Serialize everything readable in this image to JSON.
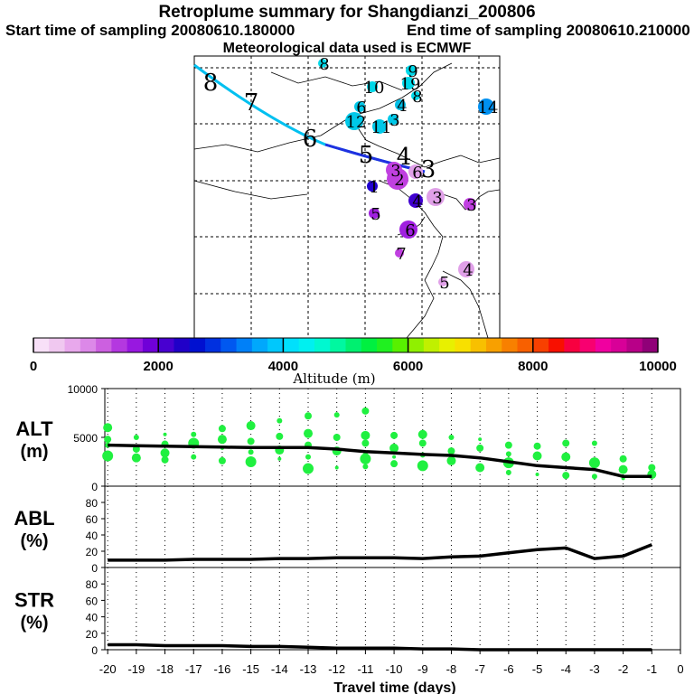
{
  "header": {
    "title": "Retroplume summary for Shangdianzi_200806",
    "start": "Start time of sampling 20080610.180000",
    "end": "End time of sampling 20080610.210000",
    "met": "Meteorological data used is ECMWF"
  },
  "colorbar": {
    "label": "Altitude (m)",
    "ticks": [
      "0",
      "2000",
      "4000",
      "6000",
      "8000",
      "10000"
    ],
    "colors": [
      "#f8e0f8",
      "#f0c8f0",
      "#e8a8ec",
      "#dc88e8",
      "#cc60e0",
      "#b438e0",
      "#9818e0",
      "#7000d8",
      "#4800d0",
      "#2000c8",
      "#0010d0",
      "#0030e0",
      "#0058f0",
      "#0080f8",
      "#00a8fc",
      "#00c8fc",
      "#00e0fc",
      "#00f0f0",
      "#00f8d0",
      "#00f8a0",
      "#00f070",
      "#00f040",
      "#20f020",
      "#58f000",
      "#90f000",
      "#c0f000",
      "#e8f000",
      "#f8e000",
      "#f8c000",
      "#f8a000",
      "#f88000",
      "#f86000",
      "#f84000",
      "#f81000",
      "#f80040",
      "#f80070",
      "#f000a0",
      "#d80098",
      "#b80088",
      "#900078"
    ]
  },
  "map": {
    "path_labels": [
      "8",
      "7",
      "6",
      "5",
      "4",
      "3"
    ],
    "clusters": [
      {
        "label": "8",
        "color": "#00d8e8"
      },
      {
        "label": "9",
        "color": "#00d8e8"
      },
      {
        "label": "10",
        "color": "#00d8e8"
      },
      {
        "label": "19",
        "color": "#00d8e8"
      },
      {
        "label": "8",
        "color": "#00d8e8"
      },
      {
        "label": "4",
        "color": "#00c0e8"
      },
      {
        "label": "14",
        "color": "#0090f0"
      },
      {
        "label": "6",
        "color": "#00c8e8"
      },
      {
        "label": "12",
        "color": "#00c8e8"
      },
      {
        "label": "11",
        "color": "#00c8e8"
      },
      {
        "label": "3",
        "color": "#00c8e8"
      },
      {
        "label": "2",
        "color": "#c040e0"
      },
      {
        "label": "1",
        "color": "#2000d0"
      },
      {
        "label": "4",
        "color": "#4000d0"
      },
      {
        "label": "3",
        "color": "#e0a0e8"
      },
      {
        "label": "3",
        "color": "#c040e0"
      },
      {
        "label": "5",
        "color": "#a020e0"
      },
      {
        "label": "6",
        "color": "#a020e0"
      },
      {
        "label": "7",
        "color": "#c040e0"
      },
      {
        "label": "4",
        "color": "#e0a0e8"
      },
      {
        "label": "5",
        "color": "#e0a0e8"
      },
      {
        "label": "6",
        "color": "#e0a0e8"
      },
      {
        "label": "3",
        "color": "#c040e0"
      }
    ]
  },
  "chart_data": {
    "type": "line",
    "x_label": "Travel time (days)",
    "x_ticks": [
      "-20",
      "-19",
      "-18",
      "-17",
      "-16",
      "-15",
      "-14",
      "-13",
      "-12",
      "-11",
      "-10",
      "-9",
      "-8",
      "-7",
      "-6",
      "-5",
      "-4",
      "-3",
      "-2",
      "-1",
      "0"
    ],
    "xlim": [
      -20.1,
      0
    ],
    "panels": [
      {
        "name": "alt",
        "label_top": "ALT",
        "label_bottom": "(m)",
        "ylim": [
          0,
          10000
        ],
        "yticks": [
          "10000",
          "5000",
          "0"
        ],
        "line_x": [
          -20,
          -19,
          -18,
          -17,
          -16,
          -15,
          -14,
          -13,
          -12,
          -11,
          -10,
          -9,
          -8,
          -7,
          -6,
          -5,
          -4,
          -3,
          -2,
          -1
        ],
        "line_y": [
          4200,
          4150,
          4100,
          4050,
          4000,
          3950,
          3950,
          3950,
          3800,
          3550,
          3400,
          3250,
          3150,
          2900,
          2500,
          2100,
          1900,
          1700,
          1000,
          1000
        ],
        "points": [
          [
            -20,
            6000
          ],
          [
            -20,
            4800
          ],
          [
            -20,
            4200
          ],
          [
            -20,
            3100
          ],
          [
            -19,
            5000
          ],
          [
            -19,
            3800
          ],
          [
            -19,
            2900
          ],
          [
            -18,
            5300
          ],
          [
            -18,
            4300
          ],
          [
            -18,
            3400
          ],
          [
            -18,
            2700
          ],
          [
            -17,
            5300
          ],
          [
            -17,
            4400
          ],
          [
            -17,
            3000
          ],
          [
            -16,
            5900
          ],
          [
            -16,
            4800
          ],
          [
            -16,
            3900
          ],
          [
            -16,
            2600
          ],
          [
            -15,
            6200
          ],
          [
            -15,
            4600
          ],
          [
            -15,
            3500
          ],
          [
            -15,
            2500
          ],
          [
            -14,
            6700
          ],
          [
            -14,
            5100
          ],
          [
            -14,
            3700
          ],
          [
            -14,
            2800
          ],
          [
            -13,
            7200
          ],
          [
            -13,
            5400
          ],
          [
            -13,
            4200
          ],
          [
            -13,
            3000
          ],
          [
            -13,
            1800
          ],
          [
            -12,
            7300
          ],
          [
            -12,
            5000
          ],
          [
            -12,
            3600
          ],
          [
            -12,
            1900
          ],
          [
            -11,
            7700
          ],
          [
            -11,
            5200
          ],
          [
            -11,
            4400
          ],
          [
            -11,
            3200
          ],
          [
            -11,
            2800
          ],
          [
            -11,
            2000
          ],
          [
            -10,
            5200
          ],
          [
            -10,
            3900
          ],
          [
            -10,
            3000
          ],
          [
            -10,
            2300
          ],
          [
            -9,
            5300
          ],
          [
            -9,
            4400
          ],
          [
            -9,
            3200
          ],
          [
            -9,
            2100
          ],
          [
            -8,
            5000
          ],
          [
            -8,
            3600
          ],
          [
            -8,
            2600
          ],
          [
            -7,
            4800
          ],
          [
            -7,
            3900
          ],
          [
            -7,
            1900
          ],
          [
            -6,
            4200
          ],
          [
            -6,
            3300
          ],
          [
            -6,
            2400
          ],
          [
            -6,
            1400
          ],
          [
            -5,
            4100
          ],
          [
            -5,
            3100
          ],
          [
            -5,
            1200
          ],
          [
            -4,
            4400
          ],
          [
            -4,
            3000
          ],
          [
            -4,
            1100
          ],
          [
            -3,
            4400
          ],
          [
            -3,
            2400
          ],
          [
            -3,
            1000
          ],
          [
            -2,
            2800
          ],
          [
            -2,
            1700
          ],
          [
            -2,
            800
          ],
          [
            -1,
            1900
          ],
          [
            -1,
            1200
          ]
        ]
      },
      {
        "name": "abl",
        "label_top": "ABL",
        "label_bottom": "(%)",
        "ylim": [
          0,
          100
        ],
        "yticks": [
          "80",
          "60",
          "40",
          "20",
          "0"
        ],
        "line_x": [
          -20,
          -19,
          -18,
          -17,
          -16,
          -15,
          -14,
          -13,
          -12,
          -11,
          -10,
          -9,
          -8,
          -7,
          -6,
          -5,
          -4,
          -3,
          -2,
          -1
        ],
        "line_y": [
          9,
          9,
          9,
          10,
          10,
          10,
          11,
          11,
          12,
          12,
          12,
          11,
          13,
          14,
          18,
          22,
          24,
          11,
          14,
          28
        ]
      },
      {
        "name": "str",
        "label_top": "STR",
        "label_bottom": "(%)",
        "ylim": [
          0,
          100
        ],
        "yticks": [
          "80",
          "60",
          "40",
          "20",
          "0"
        ],
        "line_x": [
          -20,
          -19,
          -18,
          -17,
          -16,
          -15,
          -14,
          -13,
          -12,
          -11,
          -10,
          -9,
          -8,
          -7,
          -6,
          -5,
          -4,
          -3,
          -2,
          -1
        ],
        "line_y": [
          6,
          6,
          5,
          5,
          5,
          4,
          4,
          3,
          2,
          2,
          2,
          1,
          1,
          0,
          0,
          0,
          0,
          0,
          0,
          0
        ]
      }
    ]
  }
}
